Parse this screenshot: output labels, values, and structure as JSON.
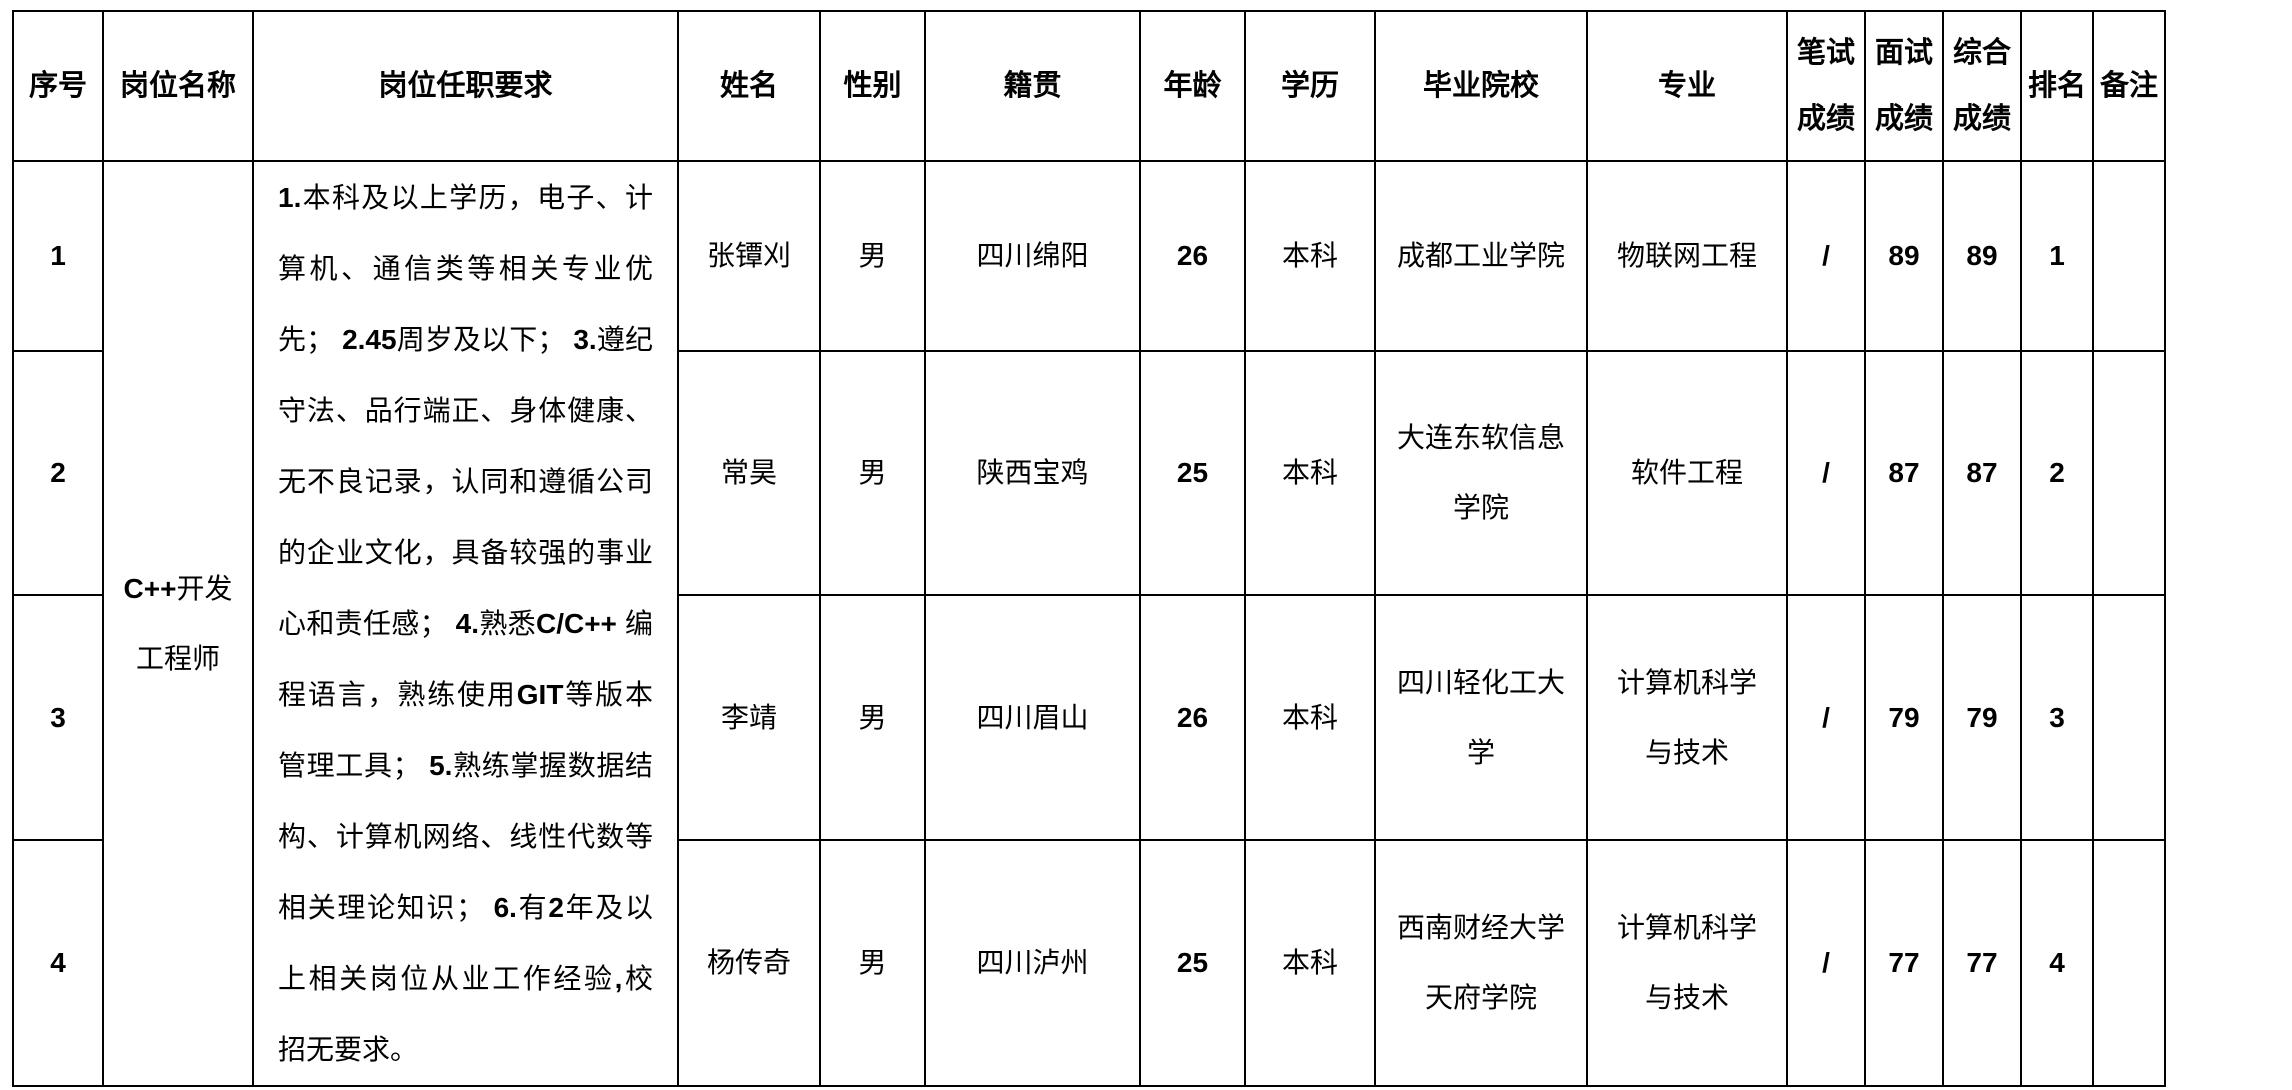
{
  "table": {
    "columns": [
      {
        "key": "index",
        "label": "序号"
      },
      {
        "key": "position",
        "label": "岗位名称"
      },
      {
        "key": "requirements",
        "label": "岗位任职要求"
      },
      {
        "key": "name",
        "label": "姓名"
      },
      {
        "key": "gender",
        "label": "性别"
      },
      {
        "key": "origin",
        "label": "籍贯"
      },
      {
        "key": "age",
        "label": "年龄"
      },
      {
        "key": "education",
        "label": "学历"
      },
      {
        "key": "school",
        "label": "毕业院校"
      },
      {
        "key": "major",
        "label": "专业"
      },
      {
        "key": "written_score",
        "label": [
          "笔试",
          "成绩"
        ]
      },
      {
        "key": "interview_score",
        "label": [
          "面试",
          "成绩"
        ]
      },
      {
        "key": "overall_score",
        "label": [
          "综合",
          "成绩"
        ]
      },
      {
        "key": "rank",
        "label": "排名"
      },
      {
        "key": "remark",
        "label": "备注"
      }
    ],
    "position": [
      "C++开发",
      "工程师"
    ],
    "requirements": [
      "1.本科及以上学历，电子、计",
      "算机、通信类等相关专业优",
      "先； 2.45周岁及以下； 3.遵纪",
      "守法、品行端正、身体健康、",
      "无不良记录，认同和遵循公司",
      "的企业文化，具备较强的事业",
      "心和责任感； 4.熟悉C/C++ 编",
      "程语言，熟练使用GIT等版本",
      "管理工具； 5.熟练掌握数据结",
      "构、计算机网络、线性代数等",
      "相关理论知识； 6.有2年及以",
      "上相关岗位从业工作经验,校",
      "招无要求。"
    ],
    "rows": [
      {
        "index": "1",
        "name": "张镡刈",
        "gender": "男",
        "origin": "四川绵阳",
        "age": "26",
        "education": "本科",
        "school": [
          "成都工业学院"
        ],
        "major": [
          "物联网工程"
        ],
        "written_score": "/",
        "interview_score": "89",
        "overall_score": "89",
        "rank": "1",
        "remark": ""
      },
      {
        "index": "2",
        "name": "常昊",
        "gender": "男",
        "origin": "陕西宝鸡",
        "age": "25",
        "education": "本科",
        "school": [
          "大连东软信息",
          "学院"
        ],
        "major": [
          "软件工程"
        ],
        "written_score": "/",
        "interview_score": "87",
        "overall_score": "87",
        "rank": "2",
        "remark": ""
      },
      {
        "index": "3",
        "name": "李靖",
        "gender": "男",
        "origin": "四川眉山",
        "age": "26",
        "education": "本科",
        "school": [
          "四川轻化工大",
          "学"
        ],
        "major": [
          "计算机科学",
          "与技术"
        ],
        "written_score": "/",
        "interview_score": "79",
        "overall_score": "79",
        "rank": "3",
        "remark": ""
      },
      {
        "index": "4",
        "name": "杨传奇",
        "gender": "男",
        "origin": "四川泸州",
        "age": "25",
        "education": "本科",
        "school": [
          "西南财经大学",
          "天府学院"
        ],
        "major": [
          "计算机科学",
          "与技术"
        ],
        "written_score": "/",
        "interview_score": "77",
        "overall_score": "77",
        "rank": "4",
        "remark": ""
      }
    ]
  }
}
